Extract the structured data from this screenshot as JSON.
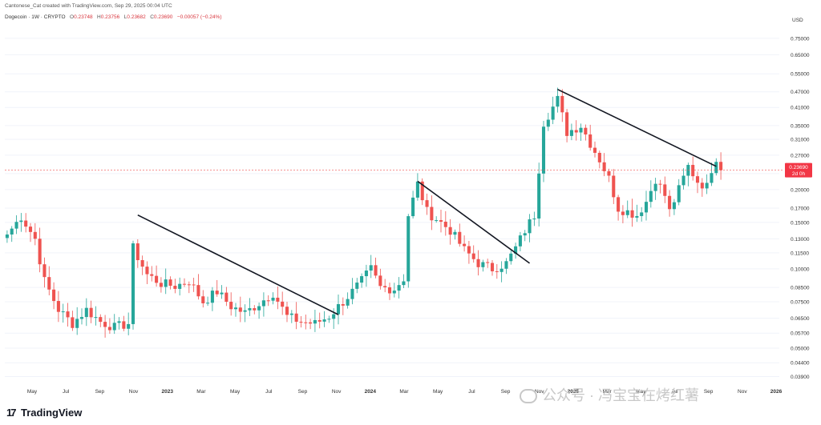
{
  "header": {
    "credit": "Cantonese_Cat created with TradingView.com, Sep 29, 2025 00:04 UTC",
    "symbol": "Dogecoin · 1W · CRYPTO",
    "open_label": "O",
    "open": "0.23748",
    "high_label": "H",
    "high": "0.23756",
    "low_label": "L",
    "low": "0.23682",
    "close_label": "C",
    "close": "0.23690",
    "change": "−0.00057 (−0.24%)"
  },
  "currency": "USD",
  "price_tag": {
    "value": "0.23690",
    "countdown": "2d 0h"
  },
  "footer": {
    "logo_text": "TradingView"
  },
  "watermark": {
    "text": "公众号 · 冯宝宝在烤红薯"
  },
  "colors": {
    "up": "#26a69a",
    "down": "#ef5350",
    "trendline": "#131722",
    "tag": "#f23645"
  },
  "chart_data": {
    "type": "candlestick",
    "scale": "log",
    "ylim": [
      0.037,
      0.85
    ],
    "y_ticks": [
      0.039,
      0.044,
      0.05,
      0.057,
      0.065,
      0.075,
      0.085,
      0.1,
      0.115,
      0.13,
      0.15,
      0.17,
      0.2,
      0.23,
      0.27,
      0.31,
      0.35,
      0.41,
      0.47,
      0.55,
      0.65,
      0.75
    ],
    "y_tick_labels": [
      "0.03900",
      "0.04400",
      "0.05000",
      "0.05700",
      "0.06500",
      "0.07500",
      "0.08500",
      "0.10000",
      "0.11500",
      "0.13000",
      "0.15000",
      "0.17000",
      "0.20000",
      "0.23000",
      "0.27000",
      "0.31000",
      "0.35000",
      "0.41000",
      "0.47000",
      "0.55000",
      "0.65000",
      "0.75000"
    ],
    "x_labels": [
      "May",
      "Jul",
      "Sep",
      "Nov",
      "2023",
      "Mar",
      "May",
      "Jul",
      "Sep",
      "Nov",
      "2024",
      "Mar",
      "May",
      "Jul",
      "Sep",
      "Nov",
      "2025",
      "Mar",
      "May",
      "Jul",
      "Sep",
      "Nov",
      "2026"
    ],
    "x_label_years": [
      "2023",
      "2024",
      "2025",
      "2026"
    ],
    "last_price": 0.2369,
    "waypoints": [
      [
        0,
        0.135
      ],
      [
        3,
        0.158
      ],
      [
        6,
        0.13
      ],
      [
        8,
        0.09
      ],
      [
        11,
        0.07
      ],
      [
        14,
        0.062
      ],
      [
        17,
        0.07
      ],
      [
        20,
        0.063
      ],
      [
        23,
        0.06
      ],
      [
        26,
        0.062
      ],
      [
        27,
        0.12
      ],
      [
        30,
        0.095
      ],
      [
        33,
        0.088
      ],
      [
        36,
        0.086
      ],
      [
        39,
        0.09
      ],
      [
        42,
        0.075
      ],
      [
        45,
        0.082
      ],
      [
        48,
        0.072
      ],
      [
        51,
        0.068
      ],
      [
        54,
        0.074
      ],
      [
        57,
        0.081
      ],
      [
        60,
        0.066
      ],
      [
        63,
        0.063
      ],
      [
        66,
        0.062
      ],
      [
        69,
        0.066
      ],
      [
        72,
        0.075
      ],
      [
        74,
        0.082
      ],
      [
        76,
        0.09
      ],
      [
        78,
        0.1
      ],
      [
        80,
        0.085
      ],
      [
        83,
        0.084
      ],
      [
        85,
        0.092
      ],
      [
        86,
        0.16
      ],
      [
        88,
        0.21
      ],
      [
        90,
        0.165
      ],
      [
        92,
        0.155
      ],
      [
        95,
        0.14
      ],
      [
        98,
        0.118
      ],
      [
        101,
        0.105
      ],
      [
        104,
        0.1
      ],
      [
        107,
        0.105
      ],
      [
        109,
        0.12
      ],
      [
        111,
        0.14
      ],
      [
        113,
        0.16
      ],
      [
        115,
        0.36
      ],
      [
        118,
        0.44
      ],
      [
        120,
        0.33
      ],
      [
        123,
        0.35
      ],
      [
        125,
        0.3
      ],
      [
        127,
        0.26
      ],
      [
        129,
        0.22
      ],
      [
        131,
        0.17
      ],
      [
        133,
        0.165
      ],
      [
        135,
        0.16
      ],
      [
        137,
        0.18
      ],
      [
        139,
        0.22
      ],
      [
        141,
        0.19
      ],
      [
        142,
        0.165
      ],
      [
        144,
        0.2
      ],
      [
        146,
        0.245
      ],
      [
        148,
        0.215
      ],
      [
        150,
        0.205
      ],
      [
        151,
        0.24
      ],
      [
        152,
        0.265
      ],
      [
        153,
        0.2369
      ]
    ],
    "n_candles": 154,
    "trendlines": [
      {
        "from": [
          28,
          0.16
        ],
        "to": [
          71,
          0.067
        ]
      },
      {
        "from": [
          88,
          0.215
        ],
        "to": [
          112,
          0.105
        ]
      },
      {
        "from": [
          118,
          0.48
        ],
        "to": [
          152,
          0.245
        ]
      }
    ]
  }
}
